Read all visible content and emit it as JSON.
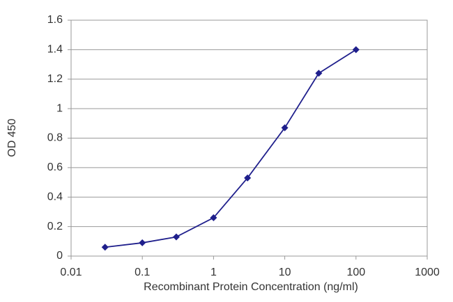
{
  "chart_data": {
    "type": "line",
    "xlabel": "Recombinant Protein Concentration (ng/ml)",
    "ylabel": "OD 450",
    "x": [
      0.03,
      0.1,
      0.3,
      1,
      3,
      10,
      30,
      100
    ],
    "values": [
      0.06,
      0.09,
      0.13,
      0.26,
      0.53,
      0.87,
      1.24,
      1.4
    ],
    "color": "#1f1f8c",
    "log_x": true,
    "xlim": [
      0.01,
      1000
    ],
    "xticks": [
      0.01,
      0.1,
      1,
      10,
      100,
      1000
    ],
    "ylim": [
      0,
      1.6
    ],
    "yticks": [
      0,
      0.2,
      0.4,
      0.6,
      0.8,
      1,
      1.2,
      1.4,
      1.6
    ],
    "grid": true
  }
}
